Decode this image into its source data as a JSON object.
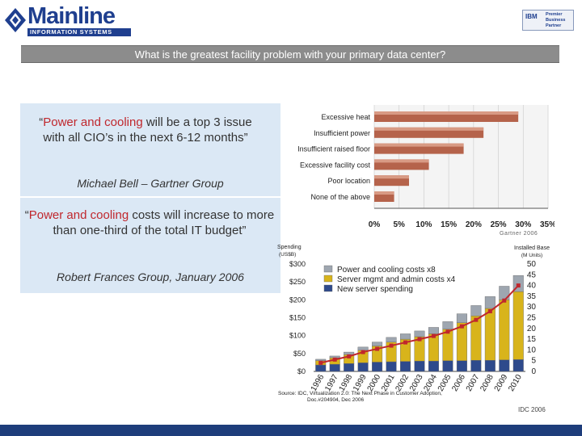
{
  "header": {
    "logo_text": "Mainline",
    "logo_subtitle": "INFORMATION SYSTEMS",
    "partner_ibm": "IBM",
    "partner_lines": [
      "Premier",
      "Business",
      "Partner"
    ],
    "title": "What is the greatest facility problem with your primary data center?"
  },
  "quotes": {
    "q1_pre": "“",
    "q1_highlight": "Power and cooling",
    "q1_rest": " will be a top 3 issue with all CIO’s in the next 6-12 months”",
    "q1_author": "Michael Bell – Gartner Group",
    "q2_pre": "“",
    "q2_highlight": "Power and cooling",
    "q2_rest": " costs will increase to more than one-third of the total IT budget”",
    "q2_author": "Robert Frances Group, January 2006"
  },
  "sources": {
    "gartner": "Gartner 2006",
    "idc": "IDC 2006"
  },
  "chart_data": [
    {
      "type": "bar",
      "orientation": "horizontal",
      "title": "",
      "categories": [
        "Excessive heat",
        "Insufficient power",
        "Insufficient raised floor",
        "Excessive facility cost",
        "Poor location",
        "None of the above"
      ],
      "values": [
        29,
        22,
        18,
        11,
        7,
        4
      ],
      "xlim": [
        0,
        35
      ],
      "ticks": [
        "0%",
        "5%",
        "10%",
        "15%",
        "20%",
        "25%",
        "30%",
        "35%"
      ],
      "bar_color": "#b5634b"
    },
    {
      "type": "bar",
      "stacked": true,
      "categories": [
        "1996",
        "1997",
        "1998",
        "1999",
        "2000",
        "2001",
        "2002",
        "2003",
        "2004",
        "2005",
        "2006",
        "2007",
        "2008",
        "2009",
        "2010"
      ],
      "ylabel": "Spending (US$B)",
      "ylabel_right": "Installed Base (M Units)",
      "ylim": [
        0,
        300
      ],
      "yticks": [
        "$0",
        "$50",
        "$100",
        "$150",
        "$200",
        "$250",
        "$300"
      ],
      "ylim_right": [
        0,
        50
      ],
      "yticks_right": [
        "0",
        "5",
        "10",
        "15",
        "20",
        "25",
        "30",
        "35",
        "40",
        "45",
        "50"
      ],
      "series": [
        {
          "name": "New server spending",
          "color": "#2e4a8c",
          "values": [
            18,
            20,
            22,
            24,
            26,
            27,
            28,
            29,
            29,
            30,
            30,
            31,
            31,
            32,
            33
          ]
        },
        {
          "name": "Server mgmt and admin costs x4",
          "color": "#d8b41b",
          "values": [
            12,
            18,
            25,
            35,
            45,
            55,
            62,
            68,
            76,
            88,
            106,
            124,
            145,
            168,
            190
          ]
        },
        {
          "name": "Power and cooling costs x8",
          "color": "#9ea6b0",
          "values": [
            4,
            5,
            7,
            9,
            11,
            13,
            15,
            16,
            18,
            21,
            25,
            29,
            33,
            38,
            45
          ]
        }
      ],
      "line": {
        "name": "Installed base",
        "color": "#c0272d",
        "values": [
          4,
          5.5,
          7,
          9,
          10.5,
          12,
          13.5,
          15,
          16.5,
          18.5,
          21,
          24,
          28,
          33,
          40
        ]
      },
      "source_line1": "Source: IDC, Virtualization 2.0: The Next Phase in Customer Adoption,",
      "source_line2": "Doc.#204904, Dec 2006"
    }
  ]
}
